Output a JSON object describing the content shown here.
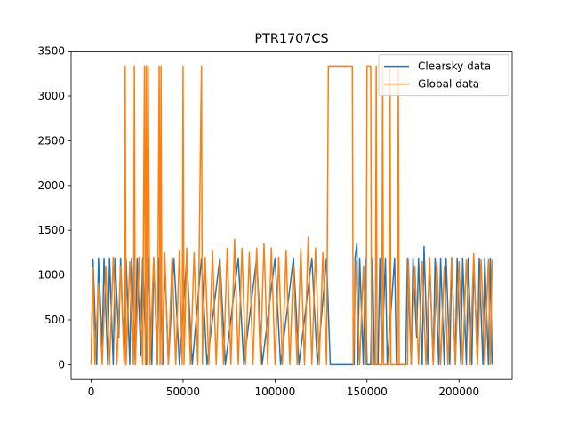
{
  "chart_data": {
    "type": "line",
    "title": "PTR1707CS",
    "xlim": [
      -10900,
      228900
    ],
    "ylim": [
      -166.65,
      3500
    ],
    "xticks": [
      0,
      50000,
      100000,
      150000,
      200000
    ],
    "yticks": [
      0,
      500,
      1000,
      1500,
      2000,
      2500,
      3000,
      3500
    ],
    "legend": "upper right",
    "series": [
      {
        "name": "Clearsky data",
        "color": "#1f77b4",
        "x": [
          0,
          1000,
          3000,
          4000,
          6000,
          7000,
          9000,
          10000,
          12000,
          13000,
          15000,
          16000,
          18000,
          19000,
          21000,
          22000,
          24000,
          25000,
          27000,
          28000,
          30000,
          31000,
          33000,
          34000,
          36000,
          37000,
          39000,
          40000,
          42000,
          45000,
          48000,
          52000,
          55000,
          60000,
          63000,
          70000,
          73000,
          80000,
          83000,
          90000,
          93000,
          100000,
          103000,
          110000,
          113000,
          120000,
          123000,
          128000,
          130000,
          143000,
          143500,
          144500,
          145000,
          146000,
          148000,
          149000,
          150000,
          152000,
          153000,
          154000,
          156000,
          157000,
          158000,
          160000,
          161000,
          165000,
          166000,
          171000,
          172000,
          174000,
          175000,
          177000,
          178000,
          180000,
          181000,
          183000,
          184000,
          186000,
          187000,
          189000,
          190000,
          192000,
          193000,
          195000,
          196000,
          198000,
          199000,
          201000,
          202000,
          204000,
          205000,
          207000,
          208000,
          210000,
          211000,
          213000,
          214000,
          216000,
          217000,
          218000
        ],
        "values": [
          0,
          1180,
          0,
          1190,
          200,
          1190,
          0,
          1190,
          0,
          1190,
          300,
          1190,
          0,
          1190,
          0,
          1190,
          0,
          1190,
          100,
          1190,
          0,
          1190,
          0,
          1190,
          0,
          1190,
          0,
          1190,
          0,
          1190,
          0,
          1190,
          0,
          1190,
          0,
          1190,
          0,
          1190,
          0,
          1190,
          0,
          1190,
          0,
          1190,
          0,
          1190,
          0,
          1190,
          0,
          0,
          1190,
          1360,
          0,
          1190,
          0,
          1190,
          0,
          0,
          1190,
          0,
          0,
          1190,
          0,
          1190,
          0,
          1190,
          0,
          0,
          1190,
          0,
          1190,
          300,
          1190,
          0,
          1320,
          0,
          1190,
          0,
          1190,
          0,
          1190,
          0,
          1190,
          0,
          1190,
          0,
          1190,
          0,
          1190,
          0,
          1190,
          0,
          1190,
          0,
          1190,
          0,
          1190,
          0,
          1190,
          0
        ]
      },
      {
        "name": "Global data",
        "color": "#ff7f0e",
        "x": [
          0,
          1000,
          2000,
          4000,
          6000,
          8000,
          10000,
          12000,
          14000,
          16000,
          18000,
          18500,
          19000,
          21000,
          23000,
          23500,
          24000,
          26000,
          28000,
          29000,
          29500,
          30000,
          30500,
          31000,
          32000,
          34000,
          36000,
          37000,
          37500,
          38000,
          38500,
          40000,
          42000,
          44000,
          46000,
          48000,
          49500,
          50000,
          50500,
          52000,
          54000,
          56000,
          58000,
          60000,
          60500,
          62000,
          64000,
          66000,
          68000,
          70000,
          72000,
          74000,
          76000,
          78000,
          80000,
          82000,
          84000,
          86000,
          88000,
          90000,
          92000,
          94000,
          96000,
          98000,
          100000,
          102000,
          104000,
          106000,
          108000,
          110000,
          112000,
          114000,
          116000,
          118000,
          120000,
          122000,
          124000,
          126000,
          128000,
          129000,
          142000,
          142500,
          144000,
          146000,
          148000,
          149500,
          150000,
          152000,
          152500,
          154500,
          155000,
          155500,
          158000,
          158500,
          159000,
          162000,
          162500,
          163000,
          166500,
          167000,
          167500,
          172000,
          172500,
          174000,
          176000,
          178000,
          180000,
          182000,
          184000,
          186000,
          188000,
          190000,
          192000,
          194000,
          196000,
          198000,
          200000,
          202000,
          204000,
          206000,
          208000,
          210000,
          212000,
          214000,
          216000,
          217000,
          218000
        ],
        "values": [
          0,
          1080,
          0,
          900,
          0,
          1100,
          0,
          1200,
          0,
          1100,
          0,
          3333,
          0,
          1150,
          0,
          3333,
          0,
          1200,
          0,
          3333,
          0,
          3333,
          0,
          3333,
          0,
          1200,
          0,
          3333,
          0,
          3333,
          0,
          1250,
          0,
          1200,
          0,
          1280,
          0,
          3333,
          0,
          1300,
          0,
          1250,
          0,
          3333,
          0,
          1200,
          0,
          1280,
          0,
          1150,
          0,
          1300,
          0,
          1400,
          0,
          1300,
          0,
          1250,
          0,
          1300,
          0,
          1350,
          0,
          1300,
          0,
          1200,
          0,
          1280,
          0,
          1100,
          0,
          1300,
          0,
          1420,
          0,
          1300,
          0,
          1250,
          0,
          3333,
          3333,
          0,
          1150,
          0,
          1100,
          0,
          3333,
          3333,
          0,
          0,
          3333,
          0,
          0,
          3333,
          0,
          0,
          3333,
          0,
          0,
          3333,
          0,
          0,
          1180,
          0,
          1100,
          0,
          1150,
          0,
          1200,
          0,
          1150,
          0,
          1100,
          0,
          1200,
          0,
          1150,
          0,
          1180,
          0,
          1240,
          0,
          1180,
          0,
          1180,
          0,
          1170
        ]
      }
    ]
  }
}
